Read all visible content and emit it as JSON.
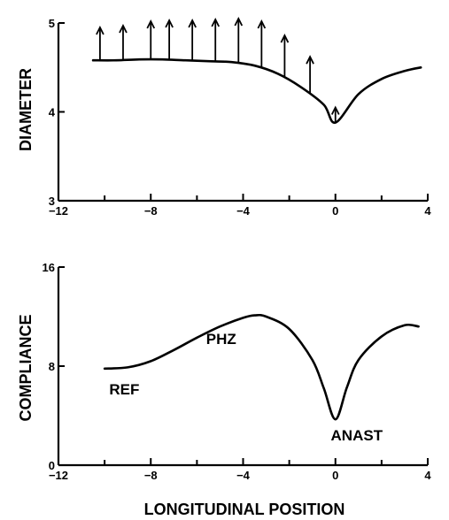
{
  "figure": {
    "xlabel": "LONGITUDINAL POSITION"
  },
  "chart_data": [
    {
      "type": "line",
      "ylabel": "DIAMETER",
      "xlim": [
        -12,
        4
      ],
      "ylim": [
        3,
        5
      ],
      "x_ticks": [
        -12,
        -8,
        -4,
        0,
        4
      ],
      "y_ticks": [
        3,
        4,
        5
      ],
      "series": [
        {
          "x": [
            -10.5,
            -9.5,
            -8.5,
            -7.5,
            -6.5,
            -5.5,
            -4.5,
            -3.5,
            -2.5,
            -1.5,
            -0.5,
            0,
            1,
            2,
            3,
            3.7
          ],
          "y": [
            4.58,
            4.58,
            4.59,
            4.59,
            4.58,
            4.57,
            4.56,
            4.52,
            4.43,
            4.28,
            4.08,
            3.88,
            4.2,
            4.37,
            4.46,
            4.5
          ]
        }
      ],
      "arrows": [
        {
          "x": -10.2,
          "y_tip": 4.95
        },
        {
          "x": -9.2,
          "y_tip": 4.97
        },
        {
          "x": -8.0,
          "y_tip": 5.02
        },
        {
          "x": -7.2,
          "y_tip": 5.03
        },
        {
          "x": -6.2,
          "y_tip": 5.03
        },
        {
          "x": -5.2,
          "y_tip": 5.04
        },
        {
          "x": -4.2,
          "y_tip": 5.05
        },
        {
          "x": -3.2,
          "y_tip": 5.02
        },
        {
          "x": -2.2,
          "y_tip": 4.86
        },
        {
          "x": -1.1,
          "y_tip": 4.62
        },
        {
          "x": 0.0,
          "y_tip": 4.05
        }
      ]
    },
    {
      "type": "line",
      "ylabel": "COMPLIANCE",
      "xlim": [
        -12,
        4
      ],
      "ylim": [
        0,
        16
      ],
      "x_ticks": [
        -12,
        -8,
        -4,
        0,
        4
      ],
      "y_ticks": [
        0,
        8,
        16
      ],
      "series": [
        {
          "x": [
            -10,
            -9,
            -8,
            -7,
            -6,
            -5,
            -4,
            -3.5,
            -3,
            -2,
            -1,
            -0.5,
            0,
            0.5,
            1,
            2,
            3,
            3.6
          ],
          "y": [
            7.8,
            7.9,
            8.4,
            9.3,
            10.3,
            11.2,
            11.9,
            12.1,
            12.0,
            11.0,
            8.5,
            6.2,
            3.7,
            6.3,
            8.5,
            10.4,
            11.3,
            11.2
          ]
        }
      ],
      "annotations": [
        {
          "text": "REF",
          "x": -9.8,
          "y": 5.7
        },
        {
          "text": "PHZ",
          "x": -5.6,
          "y": 9.8
        },
        {
          "text": "ANAST",
          "x": -0.2,
          "y": 2.0
        }
      ]
    }
  ]
}
